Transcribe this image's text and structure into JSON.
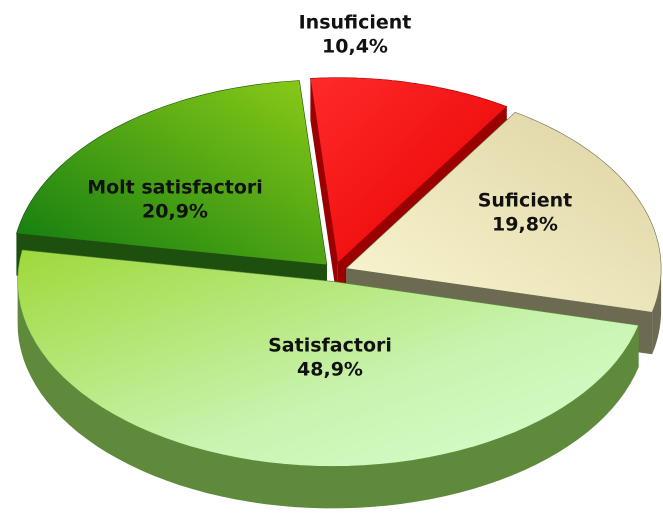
{
  "chart_data": {
    "type": "pie",
    "categories": [
      "Insuficient",
      "Suficient",
      "Satisfactori",
      "Molt satisfactori"
    ],
    "values": [
      10.4,
      19.8,
      48.9,
      20.9
    ],
    "value_labels": [
      "10,4%",
      "19,8%",
      "48,9%",
      "20,9%"
    ],
    "colors": [
      "#ff0000",
      "#efe6b4",
      "#b5e58c",
      "#3f9e1a"
    ]
  }
}
